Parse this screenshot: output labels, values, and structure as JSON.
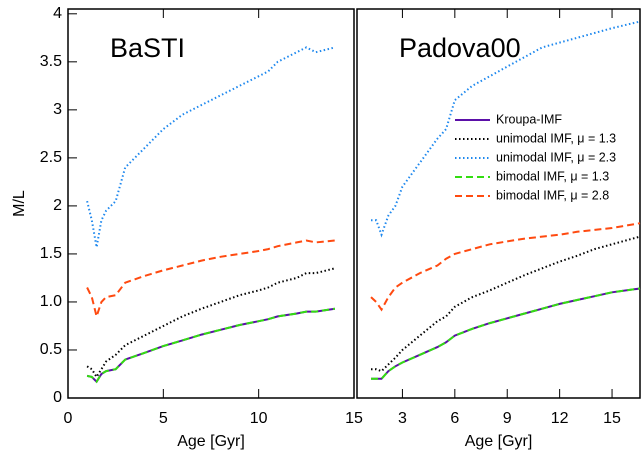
{
  "chart_data": [
    {
      "type": "line",
      "title": "BaSTI",
      "x_label": "Age [Gyr]",
      "y_label": "M/L",
      "x": [
        1,
        1.25,
        1.5,
        1.75,
        2,
        2.5,
        3,
        4,
        5,
        6,
        7,
        8,
        9,
        10,
        10.5,
        11,
        12,
        12.5,
        13,
        14
      ],
      "xlim": [
        0,
        15
      ],
      "xticks": [
        0,
        5,
        10,
        15
      ],
      "ylim": [
        0,
        4.05
      ],
      "yticks": [
        0,
        0.5,
        {
          "value": 1,
          "label": "1.0"
        },
        1.5,
        2,
        2.5,
        3,
        3.5,
        4
      ],
      "series": [
        {
          "color": "#5b0fa8",
          "style": "solid",
          "values": [
            0.23,
            0.22,
            0.17,
            0.25,
            0.28,
            0.3,
            0.4,
            0.47,
            0.54,
            0.6,
            0.66,
            0.71,
            0.76,
            0.8,
            0.82,
            0.85,
            0.88,
            0.9,
            0.9,
            0.93
          ]
        },
        {
          "color": "#000000",
          "style": "dotted",
          "values": [
            0.33,
            0.3,
            0.22,
            0.3,
            0.38,
            0.45,
            0.55,
            0.65,
            0.75,
            0.85,
            0.93,
            1.0,
            1.07,
            1.12,
            1.15,
            1.2,
            1.25,
            1.3,
            1.3,
            1.35
          ]
        },
        {
          "color": "#1e88ee",
          "style": "dotted",
          "values": [
            2.05,
            1.85,
            1.57,
            1.85,
            1.95,
            2.05,
            2.4,
            2.6,
            2.8,
            2.95,
            3.05,
            3.15,
            3.25,
            3.35,
            3.4,
            3.5,
            3.6,
            3.65,
            3.6,
            3.65
          ]
        },
        {
          "color": "#33dd11",
          "style": "dashed",
          "values": [
            0.23,
            0.22,
            0.17,
            0.25,
            0.28,
            0.3,
            0.4,
            0.47,
            0.54,
            0.6,
            0.66,
            0.71,
            0.76,
            0.8,
            0.82,
            0.85,
            0.88,
            0.9,
            0.9,
            0.93
          ]
        },
        {
          "color": "#ff4a10",
          "style": "dashed",
          "values": [
            1.15,
            1.05,
            0.85,
            1.0,
            1.05,
            1.07,
            1.2,
            1.27,
            1.33,
            1.38,
            1.43,
            1.47,
            1.5,
            1.53,
            1.55,
            1.58,
            1.62,
            1.64,
            1.62,
            1.64
          ]
        }
      ]
    },
    {
      "type": "line",
      "title": "Padova00",
      "x_label": "Age [Gyr]",
      "x": [
        1.2,
        1.5,
        1.8,
        2.2,
        2.6,
        3,
        4,
        5,
        5.5,
        6,
        7,
        8,
        9,
        10,
        11,
        12,
        13,
        14,
        15,
        16.6
      ],
      "xlim": [
        0.4,
        16.6
      ],
      "xticks": [
        3,
        6,
        9,
        12,
        15
      ],
      "ylim": [
        0,
        4.05
      ],
      "series": [
        {
          "name": "Kroupa-IMF",
          "color": "#5b0fa8",
          "style": "solid",
          "values": [
            0.2,
            0.2,
            0.2,
            0.28,
            0.33,
            0.37,
            0.45,
            0.53,
            0.58,
            0.65,
            0.72,
            0.78,
            0.83,
            0.88,
            0.93,
            0.98,
            1.02,
            1.06,
            1.1,
            1.14
          ]
        },
        {
          "name": "unimodal IMF, μ = 1.3",
          "color": "#000000",
          "style": "dotted",
          "values": [
            0.3,
            0.3,
            0.28,
            0.35,
            0.42,
            0.5,
            0.65,
            0.8,
            0.85,
            0.95,
            1.05,
            1.12,
            1.2,
            1.28,
            1.35,
            1.42,
            1.48,
            1.55,
            1.6,
            1.68
          ]
        },
        {
          "name": "unimodal IMF, μ = 2.3",
          "color": "#1e88ee",
          "style": "dotted",
          "values": [
            1.85,
            1.85,
            1.7,
            1.9,
            2.0,
            2.2,
            2.45,
            2.7,
            2.8,
            3.1,
            3.25,
            3.35,
            3.45,
            3.55,
            3.65,
            3.7,
            3.75,
            3.8,
            3.85,
            3.92
          ]
        },
        {
          "name": "bimodal IMF, μ = 1.3",
          "color": "#33dd11",
          "style": "dashed",
          "values": [
            0.2,
            0.2,
            0.2,
            0.28,
            0.33,
            0.37,
            0.45,
            0.53,
            0.58,
            0.65,
            0.72,
            0.78,
            0.83,
            0.88,
            0.93,
            0.98,
            1.02,
            1.06,
            1.1,
            1.14
          ]
        },
        {
          "name": "bimodal IMF, μ = 2.8",
          "color": "#ff4a10",
          "style": "dashed",
          "values": [
            1.05,
            1.0,
            0.92,
            1.05,
            1.15,
            1.2,
            1.3,
            1.38,
            1.45,
            1.5,
            1.55,
            1.6,
            1.63,
            1.66,
            1.68,
            1.7,
            1.73,
            1.75,
            1.77,
            1.82
          ]
        }
      ]
    }
  ]
}
